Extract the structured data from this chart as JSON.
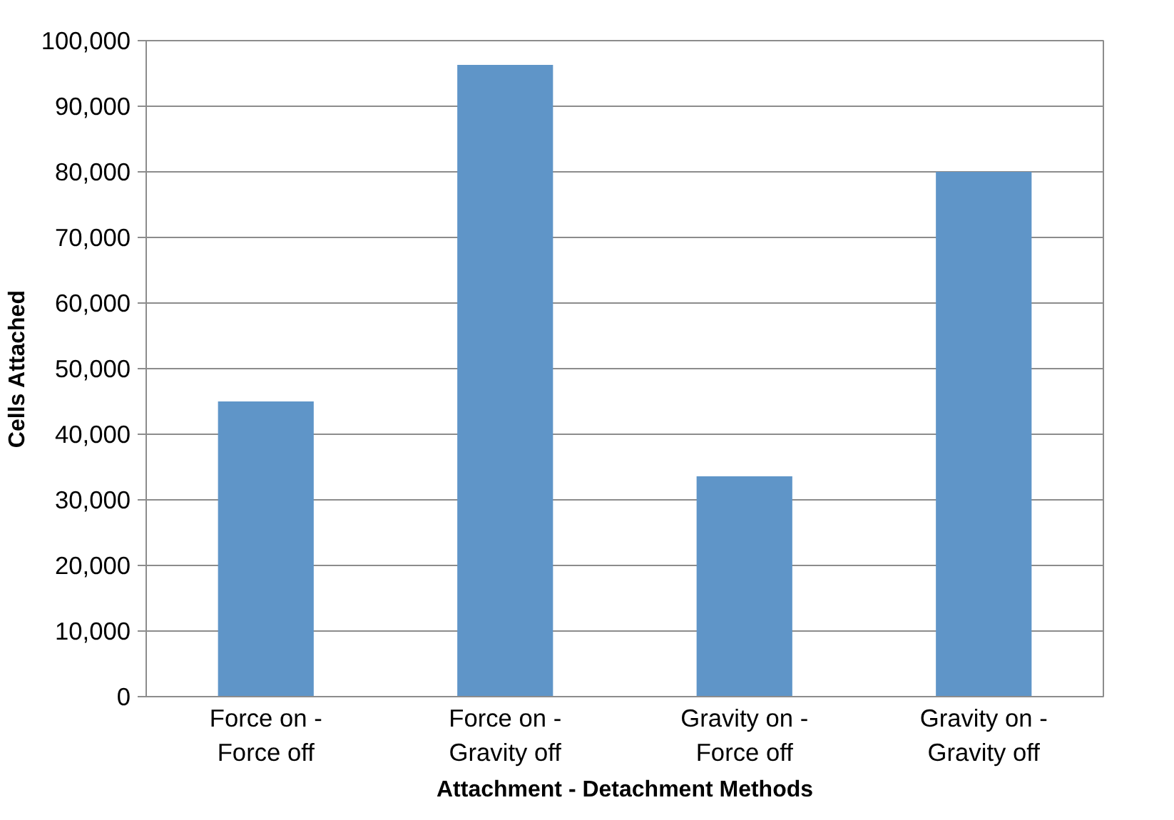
{
  "chart_data": {
    "type": "bar",
    "xlabel": "Attachment - Detachment Methods",
    "ylabel": "Cells Attached",
    "categories": [
      "Force on -\nForce off",
      "Force on -\nGravity off",
      "Gravity on -\nForce off",
      "Gravity on -\nGravity off"
    ],
    "values": [
      45000,
      96300,
      33600,
      80000
    ],
    "color": "#5f95c8",
    "ylim": [
      0,
      100000
    ],
    "yticks": [
      {
        "value": 0,
        "label": "0"
      },
      {
        "value": 10000,
        "label": "10,000"
      },
      {
        "value": 20000,
        "label": "20,000"
      },
      {
        "value": 30000,
        "label": "30,000"
      },
      {
        "value": 40000,
        "label": "40,000"
      },
      {
        "value": 50000,
        "label": "50,000"
      },
      {
        "value": 60000,
        "label": "60,000"
      },
      {
        "value": 70000,
        "label": "70,000"
      },
      {
        "value": 80000,
        "label": "80,000"
      },
      {
        "value": 90000,
        "label": "90,000"
      },
      {
        "value": 100000,
        "label": "100,000"
      }
    ],
    "grid": "y"
  }
}
